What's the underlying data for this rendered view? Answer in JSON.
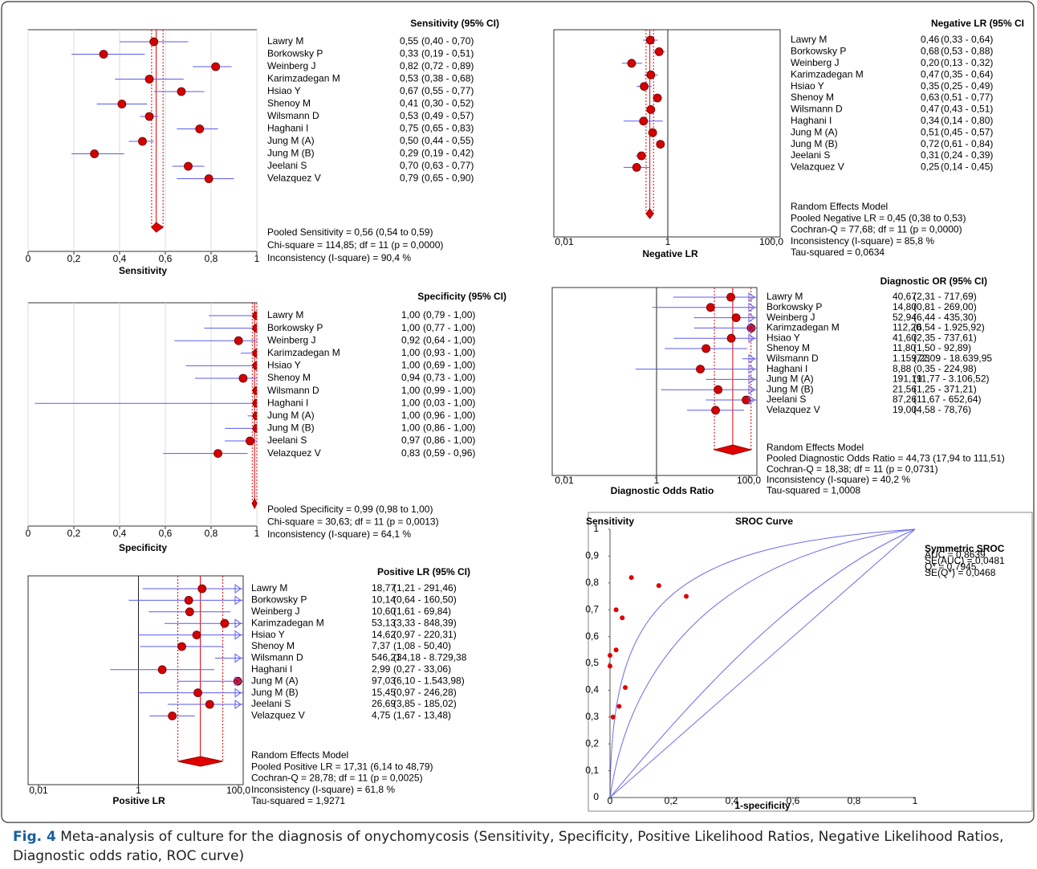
{
  "chart_data": [
    {
      "type": "forest",
      "title": "Sensitivity (95% CI)",
      "xlabel": "Sensitivity",
      "xscale": "linear",
      "categories": [
        "Lawry  M",
        "Borkowsky P",
        "Weinberg J",
        "Karimzadegan M",
        "Hsiao Y",
        "Shenoy M",
        "Wilsmann D",
        "Haghani I",
        "Jung M (A)",
        "Jung M (B)",
        "Jeelani S",
        "Velazquez V"
      ],
      "values": [
        0.55,
        0.33,
        0.82,
        0.53,
        0.67,
        0.41,
        0.53,
        0.75,
        0.5,
        0.29,
        0.7,
        0.79
      ],
      "value_labels": [
        "0,55",
        "0,33",
        "0,82",
        "0,53",
        "0,67",
        "0,41",
        "0,53",
        "0,75",
        "0,50",
        "0,29",
        "0,70",
        "0,79"
      ],
      "ci_low": [
        0.4,
        0.19,
        0.72,
        0.38,
        0.55,
        0.3,
        0.49,
        0.65,
        0.44,
        0.19,
        0.63,
        0.65
      ],
      "ci_high": [
        0.7,
        0.51,
        0.89,
        0.68,
        0.77,
        0.52,
        0.57,
        0.83,
        0.55,
        0.42,
        0.77,
        0.9
      ],
      "ci_labels": [
        "(0,40 - 0,70)",
        "(0,19 - 0,51)",
        "(0,72 - 0,89)",
        "(0,38 - 0,68)",
        "(0,55 - 0,77)",
        "(0,30 - 0,52)",
        "(0,49 - 0,57)",
        "(0,65 - 0,83)",
        "(0,44 - 0,55)",
        "(0,19 - 0,42)",
        "(0,63 - 0,77)",
        "(0,65 - 0,90)"
      ],
      "pooled": 0.56,
      "pooled_ci": [
        0.54,
        0.59
      ],
      "stats": [
        "Pooled Sensitivity = 0,56 (0,54 to 0,59)",
        "Chi-square = 114,85; df = 11 (p = 0,0000)",
        "Inconsistency (I-square) = 90,4 %"
      ],
      "xlim": [
        0,
        1
      ],
      "xticks": [
        0,
        {
          "value": 0.2,
          "label": "0,2"
        },
        {
          "value": 0.4,
          "label": "0,4"
        },
        {
          "value": 0.6,
          "label": "0,6"
        },
        {
          "value": 0.8,
          "label": "0,8"
        },
        1
      ],
      "grid": true,
      "point_color": "#d40000",
      "ci_color": "#5a5af0",
      "pooled_color": "#e00000"
    },
    {
      "type": "forest",
      "title": "Specificity (95% CI)",
      "xlabel": "Specificity",
      "xscale": "linear",
      "categories": [
        "Lawry  M",
        "Borkowsky P",
        "Weinberg J",
        "Karimzadegan M",
        "Hsiao Y",
        "Shenoy M",
        "Wilsmann D",
        "Haghani I",
        "Jung M (A)",
        "Jung M (B)",
        "Jeelani S",
        "Velazquez V"
      ],
      "values": [
        1.0,
        1.0,
        0.92,
        1.0,
        1.0,
        0.94,
        1.0,
        1.0,
        1.0,
        1.0,
        0.97,
        0.83
      ],
      "value_labels": [
        "1,00",
        "1,00",
        "0,92",
        "1,00",
        "1,00",
        "0,94",
        "1,00",
        "1,00",
        "1,00",
        "1,00",
        "0,97",
        "0,83"
      ],
      "ci_low": [
        0.79,
        0.77,
        0.64,
        0.93,
        0.69,
        0.73,
        0.99,
        0.03,
        0.96,
        0.86,
        0.86,
        0.59
      ],
      "ci_high": [
        1.0,
        1.0,
        1.0,
        1.0,
        1.0,
        1.0,
        1.0,
        1.0,
        1.0,
        1.0,
        1.0,
        0.96
      ],
      "ci_labels": [
        "(0,79 - 1,00)",
        "(0,77 - 1,00)",
        "(0,64 - 1,00)",
        "(0,93 - 1,00)",
        "(0,69 - 1,00)",
        "(0,73 - 1,00)",
        "(0,99 - 1,00)",
        "(0,03 - 1,00)",
        "(0,96 - 1,00)",
        "(0,86 - 1,00)",
        "(0,86 - 1,00)",
        "(0,59 - 0,96)"
      ],
      "pooled": 0.99,
      "pooled_ci": [
        0.98,
        1.0
      ],
      "stats": [
        "Pooled Specificity = 0,99 (0,98 to 1,00)",
        "Chi-square = 30,63; df = 11 (p = 0,0013)",
        "Inconsistency (I-square) = 64,1 %"
      ],
      "xlim": [
        0,
        1
      ],
      "xticks": [
        0,
        {
          "value": 0.2,
          "label": "0,2"
        },
        {
          "value": 0.4,
          "label": "0,4"
        },
        {
          "value": 0.6,
          "label": "0,6"
        },
        {
          "value": 0.8,
          "label": "0,8"
        },
        1
      ],
      "grid": true,
      "point_color": "#d40000",
      "ci_color": "#5a5af0",
      "pooled_color": "#e00000"
    },
    {
      "type": "forest",
      "title": "Positive LR (95% CI)",
      "xlabel": "Positive LR",
      "xscale": "log",
      "categories": [
        "Lawry  M",
        "Borkowsky P",
        "Weinberg J",
        "Karimzadegan M",
        "Hsiao Y",
        "Shenoy M",
        "Wilsmann D",
        "Haghani I",
        "Jung M (A)",
        "Jung M (B)",
        "Jeelani S",
        "Velazquez V"
      ],
      "values": [
        18.77,
        10.14,
        10.6,
        53.13,
        14.62,
        7.37,
        546.21,
        2.99,
        97.03,
        15.45,
        26.69,
        4.75
      ],
      "value_labels": [
        "18,77",
        "10,14",
        "10,60",
        "53,13",
        "14,62",
        "7,37",
        "546,21",
        "2,99",
        "97,03",
        "15,45",
        "26,69",
        "4,75"
      ],
      "ci_low": [
        1.21,
        0.64,
        1.61,
        3.33,
        0.97,
        1.08,
        34.18,
        0.27,
        6.1,
        0.97,
        3.85,
        1.67
      ],
      "ci_high": [
        291.46,
        160.5,
        69.84,
        848.39,
        220.31,
        50.4,
        8729.38,
        33.06,
        1543.98,
        246.28,
        185.02,
        13.48
      ],
      "ci_labels": [
        "(1,21 - 291,46)",
        "(0,64 - 160,50)",
        "(1,61 - 69,84)",
        "(3,33 - 848,39)",
        "(0,97 - 220,31)",
        "(1,08 - 50,40)",
        "(34,18 - 8.729,38",
        "(0,27 - 33,06)",
        "(6,10 - 1.543,98)",
        "(0,97 - 246,28)",
        "(3,85 - 185,02)",
        "(1,67 - 13,48)"
      ],
      "pooled": 17.31,
      "pooled_ci": [
        6.14,
        48.79
      ],
      "stats": [
        "Random Effects Model",
        "Pooled Positive LR = 17,31 (6,14 to 48,79)",
        "Cochran-Q = 28,78; df = 11 (p = 0,0025)",
        "Inconsistency (I-square) = 61,8 %",
        "Tau-squared = 1,9271"
      ],
      "xlim": [
        0.01,
        100
      ],
      "xticks": [
        {
          "value": 0.01,
          "label": "0,01"
        },
        1,
        {
          "value": 100,
          "label": "100,0"
        }
      ],
      "null_line": 1,
      "grid": false,
      "point_color": "#d40000",
      "ci_color": "#5a5af0",
      "pooled_color": "#e00000"
    },
    {
      "type": "forest",
      "title": "Negative LR (95% CI",
      "xlabel": "Negative LR",
      "xscale": "log",
      "categories": [
        "Lawry  M",
        "Borkowsky P",
        "Weinberg J",
        "Karimzadegan M",
        "Hsiao Y",
        "Shenoy M",
        "Wilsmann D",
        "Haghani I",
        "Jung M (A)",
        "Jung M (B)",
        "Jeelani S",
        "Velazquez V"
      ],
      "values": [
        0.46,
        0.68,
        0.2,
        0.47,
        0.35,
        0.63,
        0.47,
        0.34,
        0.51,
        0.72,
        0.31,
        0.25
      ],
      "value_labels": [
        "0,46",
        "0,68",
        "0,20",
        "0,47",
        "0,35",
        "0,63",
        "0,47",
        "0,34",
        "0,51",
        "0,72",
        "0,31",
        "0,25"
      ],
      "ci_low": [
        0.33,
        0.53,
        0.13,
        0.35,
        0.25,
        0.51,
        0.43,
        0.14,
        0.45,
        0.61,
        0.24,
        0.14
      ],
      "ci_high": [
        0.64,
        0.88,
        0.32,
        0.64,
        0.49,
        0.77,
        0.51,
        0.8,
        0.57,
        0.84,
        0.39,
        0.45
      ],
      "ci_labels": [
        "(0,33 - 0,64)",
        "(0,53 - 0,88)",
        "(0,13 - 0,32)",
        "(0,35 - 0,64)",
        "(0,25 - 0,49)",
        "(0,51 - 0,77)",
        "(0,43 - 0,51)",
        "(0,14 - 0,80)",
        "(0,45 - 0,57)",
        "(0,61 - 0,84)",
        "(0,24 - 0,39)",
        "(0,14 - 0,45)"
      ],
      "pooled": 0.45,
      "pooled_ci": [
        0.38,
        0.53
      ],
      "stats": [
        "Random Effects Model",
        "Pooled Negative LR = 0,45 (0,38 to 0,53)",
        "Cochran-Q = 77,68; df = 11 (p = 0,0000)",
        "Inconsistency (I-square) = 85,8 %",
        "Tau-squared = 0,0634"
      ],
      "xlim": [
        0.01,
        100
      ],
      "xticks": [
        {
          "value": 0.01,
          "label": "0,01"
        },
        1,
        {
          "value": 100,
          "label": "100,0"
        }
      ],
      "null_line": 1,
      "grid": false,
      "point_color": "#d40000",
      "ci_color": "#5a5af0",
      "pooled_color": "#e00000"
    },
    {
      "type": "forest",
      "title": "Diagnostic OR (95% CI)",
      "xlabel": "Diagnostic Odds Ratio",
      "xscale": "log",
      "categories": [
        "Lawry  M",
        "Borkowsky P",
        "Weinberg J",
        "Karimzadegan M",
        "Hsiao Y",
        "Shenoy M",
        "Wilsmann D",
        "Haghani I",
        "Jung M (A)",
        "Jung M (B)",
        "Jeelani S",
        "Velazquez V"
      ],
      "values": [
        40.67,
        14.8,
        52.94,
        112.2,
        41.6,
        11.8,
        1159.23,
        8.88,
        191.19,
        21.56,
        87.26,
        19.0
      ],
      "value_labels": [
        "40,67",
        "14,80",
        "52,94",
        "112,20",
        "41,60",
        "11,80",
        "1.159,23",
        "8,88",
        "191,19",
        "21,56",
        "87,26",
        "19,00"
      ],
      "ci_low": [
        2.31,
        0.81,
        6.44,
        6.54,
        2.35,
        1.5,
        72.09,
        0.35,
        11.77,
        1.25,
        11.67,
        4.58
      ],
      "ci_high": [
        717.69,
        269.0,
        435.3,
        1925.92,
        737.61,
        92.89,
        18639.95,
        224.98,
        3106.52,
        371.21,
        652.64,
        78.76
      ],
      "ci_labels": [
        "(2,31 - 717,69)",
        "(0,81 - 269,00)",
        "(6,44 - 435,30)",
        "(6,54 - 1.925,92)",
        "(2,35 - 737,61)",
        "(1,50 - 92,89)",
        "(72,09 - 18.639,95",
        "(0,35 - 224,98)",
        "(11,77 - 3.106,52)",
        "(1,25 - 371,21)",
        "(11,67 - 652,64)",
        "(4,58 - 78,76)"
      ],
      "pooled": 44.73,
      "pooled_ci": [
        17.94,
        111.51
      ],
      "stats": [
        "Random Effects Model",
        "Pooled Diagnostic Odds Ratio = 44,73 (17,94 to 111,51)",
        "Cochran-Q = 18,38; df = 11 (p = 0,0731)",
        "Inconsistency (I-square) = 40,2 %",
        "Tau-squared = 1,0008"
      ],
      "xlim": [
        0.01,
        100
      ],
      "xticks": [
        {
          "value": 0.01,
          "label": "0,01"
        },
        1,
        {
          "value": 100,
          "label": "100,0"
        }
      ],
      "null_line": 1,
      "grid": false,
      "point_color": "#d40000",
      "ci_color": "#5a5af0",
      "pooled_color": "#e00000"
    },
    {
      "type": "scatter",
      "title": "SROC Curve",
      "xlabel": "1-specificity",
      "ylabel": "Sensitivity",
      "x": [
        0.07,
        0.16,
        0.25,
        0.02,
        0.04,
        0.02,
        0.0,
        0.0,
        0.05,
        0.03,
        0.01
      ],
      "values": [
        0.82,
        0.79,
        0.75,
        0.7,
        0.67,
        0.55,
        0.53,
        0.49,
        0.41,
        0.34,
        0.3
      ],
      "color": "#e00000",
      "xlim": [
        0,
        1
      ],
      "ylim": [
        0,
        1
      ],
      "xticks": [
        0,
        {
          "value": 0.2,
          "label": "0,2"
        },
        {
          "value": 0.4,
          "label": "0,4"
        },
        {
          "value": 0.6,
          "label": "0,6"
        },
        {
          "value": 0.8,
          "label": "0,8"
        },
        1
      ],
      "yticks": [
        0,
        {
          "value": 0.1,
          "label": "0,1"
        },
        {
          "value": 0.2,
          "label": "0,2"
        },
        {
          "value": 0.3,
          "label": "0,3"
        },
        {
          "value": 0.4,
          "label": "0,4"
        },
        {
          "value": 0.5,
          "label": "0,5"
        },
        {
          "value": 0.6,
          "label": "0,6"
        },
        {
          "value": 0.7,
          "label": "0,7"
        },
        {
          "value": 0.8,
          "label": "0,8"
        },
        {
          "value": 0.9,
          "label": "0,9"
        },
        1
      ],
      "annotations": [
        "Symmetric SROC",
        "AUC = 0,8639",
        "SE(AUC) = 0,0481",
        "Q* = 0,7945",
        "SE(Q*) = 0,0468"
      ]
    }
  ],
  "caption": {
    "label": "Fig. 4",
    "text": " Meta-analysis of culture for the diagnosis of onychomycosis (Sensitivity, Specificity, Positive Likelihood Ratios, Negative Likelihood Ratios, Diagnostic odds ratio, ROC curve)"
  }
}
